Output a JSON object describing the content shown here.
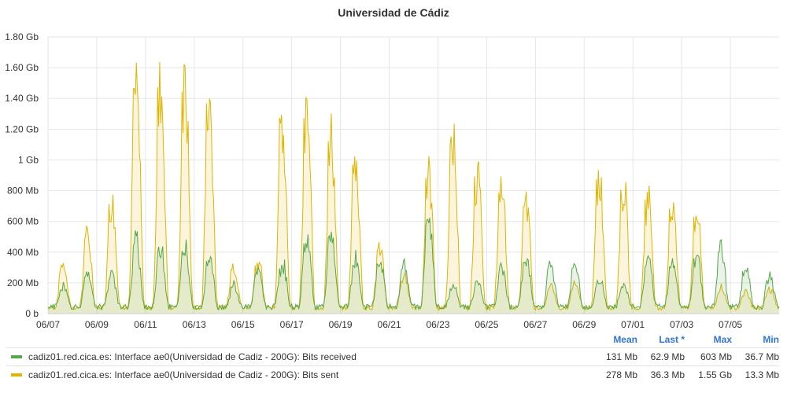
{
  "chart_data": {
    "type": "area",
    "title": "Universidad de Cádiz",
    "x_ticks": [
      "06/07",
      "06/09",
      "06/11",
      "06/13",
      "06/15",
      "06/17",
      "06/19",
      "06/21",
      "06/23",
      "06/25",
      "06/27",
      "06/29",
      "07/01",
      "07/03",
      "07/05"
    ],
    "y_ticks": [
      "0 b",
      "200 Mb",
      "400 Mb",
      "600 Mb",
      "800 Mb",
      "1 Gb",
      "1.20 Gb",
      "1.40 Gb",
      "1.60 Gb",
      "1.80 Gb"
    ],
    "ylim_mb": [
      0,
      1800
    ],
    "xlim_days": [
      "06/07 00:00",
      "07/07 00:00"
    ],
    "grid": true,
    "series": [
      {
        "name": "cadiz01.red.cica.es: Interface ae0(Universidad de Cadiz - 200G): Bits received",
        "color": "#56a64b",
        "daily_peaks_mb": [
          150,
          230,
          230,
          460,
          420,
          430,
          360,
          150,
          250,
          310,
          480,
          520,
          330,
          340,
          300,
          600,
          140,
          170,
          280,
          350,
          300,
          310,
          200,
          150,
          320,
          320,
          380,
          420,
          290,
          230,
          120
        ],
        "mean": "131 Mb",
        "last": "62.9 Mb",
        "max": "603 Mb",
        "min": "36.7 Mb"
      },
      {
        "name": "cadiz01.red.cica.es: Interface ae0(Universidad de Cadiz - 200G): Bits sent",
        "color": "#e0b400",
        "daily_peaks_mb": [
          300,
          500,
          750,
          1540,
          1550,
          1520,
          1440,
          300,
          330,
          1340,
          1340,
          1180,
          1020,
          420,
          220,
          930,
          1160,
          940,
          830,
          730,
          150,
          160,
          920,
          850,
          780,
          720,
          660,
          140,
          120,
          130,
          360
        ],
        "mean": "278 Mb",
        "last": "36.3 Mb",
        "max": "1.55 Gb",
        "min": "13.3 Mb"
      }
    ]
  },
  "legend": {
    "headers": {
      "mean": "Mean",
      "last": "Last *",
      "max": "Max",
      "min": "Min"
    }
  }
}
